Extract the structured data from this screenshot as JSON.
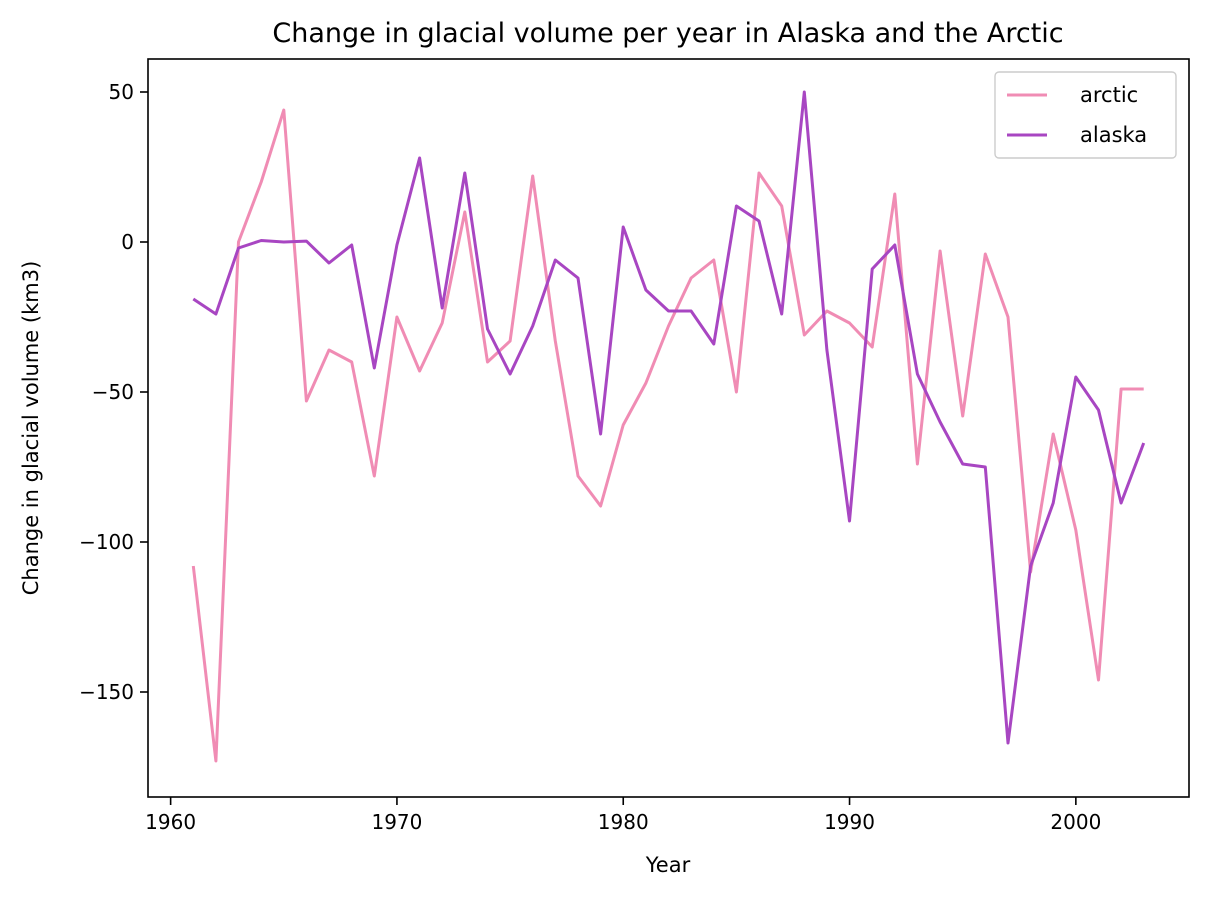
{
  "chart_data": {
    "type": "line",
    "title": "Change in glacial volume per year in Alaska and the Arctic",
    "xlabel": "Year",
    "ylabel": "Change in glacial volume (km3)",
    "xlim": [
      1959,
      2005
    ],
    "ylim": [
      -185,
      61
    ],
    "xticks": [
      1960,
      1970,
      1980,
      1990,
      2000
    ],
    "yticks": [
      50,
      0,
      -50,
      -100,
      -150
    ],
    "ytick_labels": [
      "50",
      "0",
      "−50",
      "−100",
      "−150"
    ],
    "grid": false,
    "legend_position": "top-right",
    "x": [
      1961,
      1962,
      1963,
      1964,
      1965,
      1966,
      1967,
      1968,
      1969,
      1970,
      1971,
      1972,
      1973,
      1974,
      1975,
      1976,
      1977,
      1978,
      1979,
      1980,
      1981,
      1982,
      1983,
      1984,
      1985,
      1986,
      1987,
      1988,
      1989,
      1990,
      1991,
      1992,
      1993,
      1994,
      1995,
      1996,
      1997,
      1998,
      1999,
      2000,
      2001,
      2002,
      2003
    ],
    "series": [
      {
        "name": "arctic",
        "color": "#f08cb4",
        "values": [
          -108,
          -173,
          0,
          20,
          44,
          -53,
          -36,
          -40,
          -78,
          -25,
          -43,
          -27,
          10,
          -40,
          -33,
          22,
          -33,
          -78,
          -88,
          -61,
          -47,
          -28,
          -12,
          -6,
          -50,
          23,
          12,
          -31,
          -23,
          -27,
          -35,
          16,
          -74,
          -3,
          -58,
          -4,
          -25,
          -110,
          -64,
          -96,
          -146,
          -49,
          -49
        ]
      },
      {
        "name": "alaska",
        "color": "#a846c2",
        "values": [
          -19,
          -24,
          -2,
          0.5,
          0,
          0.3,
          -7,
          -1,
          -42,
          -1,
          28,
          -22,
          23,
          -29,
          -44,
          -28,
          -6,
          -12,
          -64,
          5,
          -16,
          -23,
          -23,
          -34,
          12,
          7,
          -24,
          50,
          -36,
          -93,
          -9,
          -1,
          -44,
          -60,
          -74,
          -75,
          -167,
          -108,
          -87,
          -45,
          -56,
          -87,
          -67
        ]
      }
    ]
  }
}
